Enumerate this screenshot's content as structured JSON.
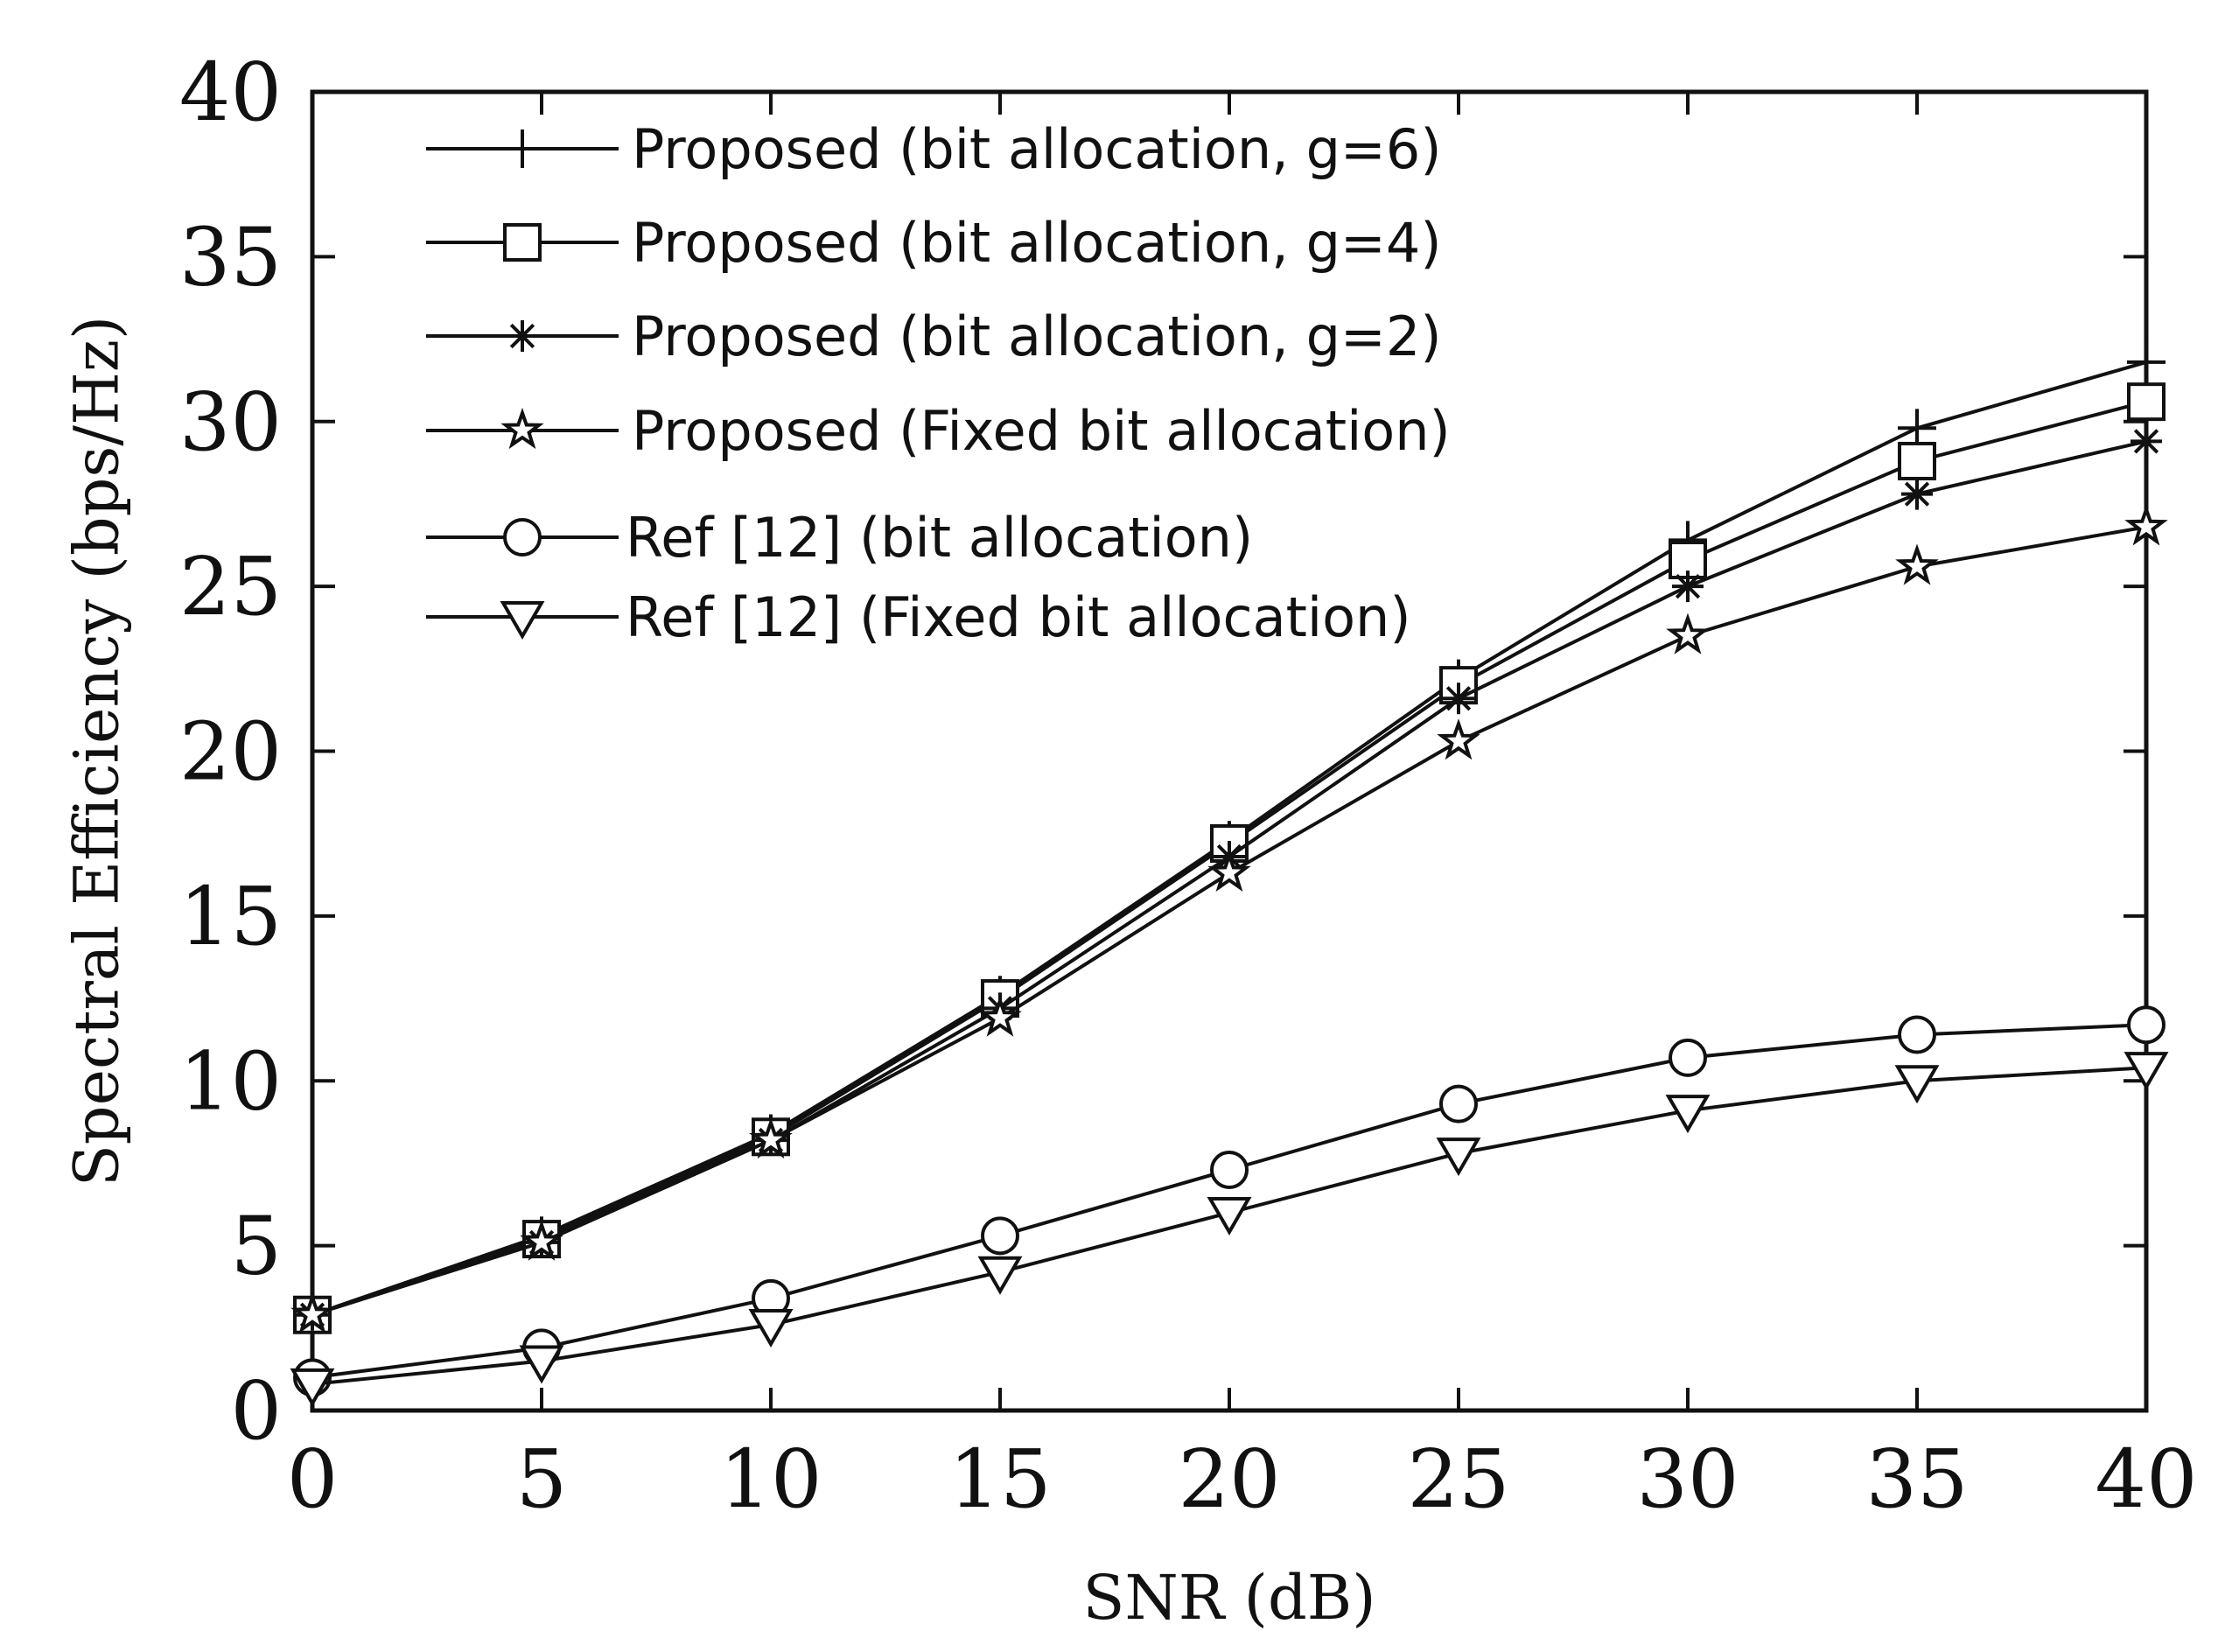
{
  "chart_data": {
    "type": "line",
    "title": "",
    "xlabel": "SNR (dB)",
    "ylabel": "Spectral Efficiency (bps/Hz)",
    "xlim": [
      0,
      40
    ],
    "ylim": [
      0,
      40
    ],
    "xticks": [
      0,
      5,
      10,
      15,
      20,
      25,
      30,
      35,
      40
    ],
    "yticks": [
      0,
      5,
      10,
      15,
      20,
      25,
      30,
      35,
      40
    ],
    "grid": false,
    "legend_position": "top-left",
    "x": [
      0,
      5,
      10,
      15,
      20,
      25,
      30,
      35,
      40
    ],
    "series": [
      {
        "name": "Proposed (bit allocation, g=6)",
        "marker": "plus",
        "values": [
          2.9,
          5.3,
          8.4,
          12.6,
          17.3,
          22.2,
          26.4,
          29.8,
          31.8
        ]
      },
      {
        "name": "Proposed (bit allocation, g=4)",
        "marker": "square",
        "values": [
          2.9,
          5.2,
          8.3,
          12.5,
          17.2,
          22.0,
          25.8,
          28.8,
          30.6
        ]
      },
      {
        "name": "Proposed (bit allocation, g=2)",
        "marker": "asterisk",
        "values": [
          2.9,
          5.1,
          8.2,
          12.2,
          16.8,
          21.6,
          25.0,
          27.8,
          29.4
        ]
      },
      {
        "name": "Proposed (Fixed bit allocation)",
        "marker": "star",
        "values": [
          2.9,
          5.1,
          8.2,
          11.9,
          16.3,
          20.3,
          23.5,
          25.6,
          26.8
        ]
      },
      {
        "name": "Ref [12] (bit allocation)",
        "marker": "circle",
        "values": [
          1.0,
          1.9,
          3.4,
          5.3,
          7.3,
          9.3,
          10.7,
          11.4,
          11.7
        ]
      },
      {
        "name": "Ref [12] (Fixed bit allocation)",
        "marker": "triangle-down",
        "values": [
          0.8,
          1.5,
          2.6,
          4.2,
          6.0,
          7.8,
          9.1,
          10.0,
          10.4
        ]
      }
    ]
  }
}
